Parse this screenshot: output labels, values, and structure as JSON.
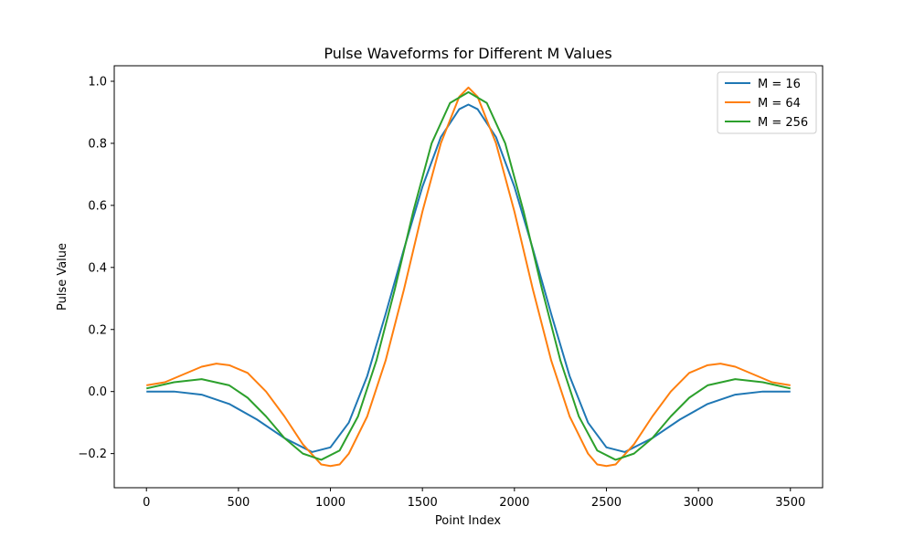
{
  "chart_data": {
    "type": "line",
    "title": "Pulse Waveforms for Different M Values",
    "xlabel": "Point Index",
    "ylabel": "Pulse Value",
    "xlim": [
      -175,
      3675
    ],
    "ylim": [
      -0.31,
      1.05
    ],
    "xticks": [
      0,
      500,
      1000,
      1500,
      2000,
      2500,
      3000,
      3500
    ],
    "yticks": [
      -0.2,
      0.0,
      0.2,
      0.4,
      0.6,
      0.8,
      1.0
    ],
    "xtick_labels": [
      "0",
      "500",
      "1000",
      "1500",
      "2000",
      "2500",
      "3000",
      "3500"
    ],
    "ytick_labels": [
      "−0.2",
      "0.0",
      "0.2",
      "0.4",
      "0.6",
      "0.8",
      "1.0"
    ],
    "grid": false,
    "legend_position": "top-right",
    "series": [
      {
        "name": "M = 16",
        "color": "#1f77b4",
        "x": [
          0,
          150,
          300,
          450,
          600,
          750,
          900,
          1000,
          1100,
          1200,
          1300,
          1400,
          1500,
          1600,
          1700,
          1750,
          1800,
          1900,
          2000,
          2100,
          2200,
          2300,
          2400,
          2500,
          2600,
          2750,
          2900,
          3050,
          3200,
          3350,
          3500
        ],
        "values": [
          0.0,
          0.0,
          -0.01,
          -0.04,
          -0.09,
          -0.15,
          -0.195,
          -0.18,
          -0.1,
          0.05,
          0.25,
          0.46,
          0.66,
          0.82,
          0.91,
          0.925,
          0.91,
          0.82,
          0.66,
          0.46,
          0.25,
          0.05,
          -0.1,
          -0.18,
          -0.195,
          -0.15,
          -0.09,
          -0.04,
          -0.01,
          0.0,
          0.0
        ]
      },
      {
        "name": "M = 64",
        "color": "#ff7f0e",
        "x": [
          0,
          100,
          200,
          300,
          380,
          450,
          550,
          650,
          750,
          850,
          950,
          1000,
          1050,
          1100,
          1200,
          1300,
          1400,
          1500,
          1600,
          1700,
          1750,
          1800,
          1900,
          2000,
          2100,
          2200,
          2300,
          2400,
          2450,
          2500,
          2550,
          2650,
          2750,
          2850,
          2950,
          3050,
          3120,
          3200,
          3300,
          3400,
          3500
        ],
        "values": [
          0.02,
          0.03,
          0.055,
          0.08,
          0.09,
          0.085,
          0.06,
          0.0,
          -0.08,
          -0.17,
          -0.235,
          -0.24,
          -0.235,
          -0.2,
          -0.08,
          0.1,
          0.33,
          0.58,
          0.8,
          0.95,
          0.98,
          0.95,
          0.8,
          0.58,
          0.33,
          0.1,
          -0.08,
          -0.2,
          -0.235,
          -0.24,
          -0.235,
          -0.17,
          -0.08,
          0.0,
          0.06,
          0.085,
          0.09,
          0.08,
          0.055,
          0.03,
          0.02
        ]
      },
      {
        "name": "M = 256",
        "color": "#2ca02c",
        "x": [
          0,
          150,
          300,
          450,
          550,
          650,
          750,
          850,
          950,
          1050,
          1150,
          1250,
          1350,
          1450,
          1550,
          1650,
          1750,
          1850,
          1950,
          2050,
          2150,
          2250,
          2350,
          2450,
          2550,
          2650,
          2750,
          2850,
          2950,
          3050,
          3200,
          3350,
          3500
        ],
        "values": [
          0.01,
          0.03,
          0.04,
          0.02,
          -0.02,
          -0.08,
          -0.15,
          -0.2,
          -0.22,
          -0.19,
          -0.08,
          0.1,
          0.33,
          0.58,
          0.8,
          0.93,
          0.965,
          0.93,
          0.8,
          0.58,
          0.33,
          0.1,
          -0.08,
          -0.19,
          -0.22,
          -0.2,
          -0.15,
          -0.08,
          -0.02,
          0.02,
          0.04,
          0.03,
          0.01
        ]
      }
    ]
  }
}
